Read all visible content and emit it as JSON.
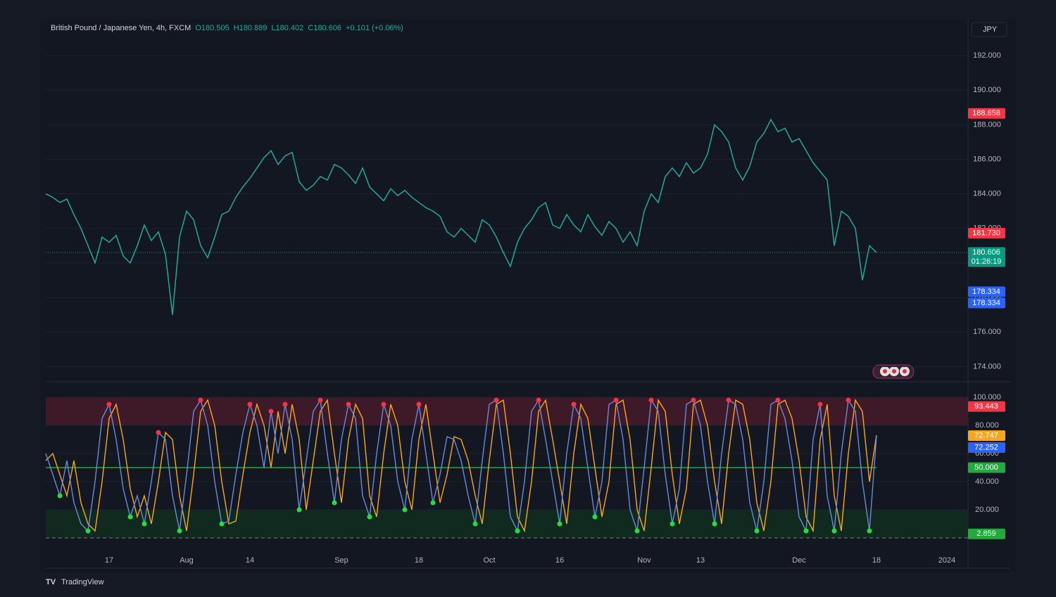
{
  "header": {
    "symbol": "British Pound / Japanese Yen, 4h, FXCM",
    "open": "O180.505",
    "high": "H180.889",
    "low": "L180.402",
    "close": "C180.606",
    "change": "+0.101 (+0.06%)",
    "currency": "JPY"
  },
  "footer": {
    "brand": "TradingView"
  },
  "chart_data": [
    {
      "type": "line",
      "color": "#26a69a",
      "values": [
        184.0,
        183.8,
        183.5,
        183.7,
        182.8,
        182.0,
        181.0,
        180.0,
        181.5,
        181.2,
        181.6,
        180.4,
        180.0,
        181.0,
        182.2,
        181.3,
        181.8,
        180.5,
        177.0,
        181.5,
        183.0,
        182.5,
        181.0,
        180.3,
        181.5,
        182.8,
        183.0,
        183.8,
        184.4,
        184.9,
        185.5,
        186.1,
        186.5,
        185.7,
        186.2,
        186.4,
        184.7,
        184.2,
        184.5,
        185.0,
        184.8,
        185.7,
        185.5,
        185.1,
        184.6,
        185.5,
        184.4,
        184.0,
        183.6,
        184.3,
        183.9,
        184.2,
        183.8,
        183.5,
        183.2,
        183.0,
        182.7,
        181.8,
        181.5,
        182.0,
        181.6,
        181.2,
        182.5,
        182.2,
        181.5,
        180.6,
        179.8,
        181.2,
        182.0,
        182.5,
        183.2,
        183.5,
        182.2,
        182.0,
        182.8,
        182.2,
        181.8,
        182.8,
        182.1,
        181.6,
        182.4,
        182.0,
        181.2,
        181.8,
        181.0,
        183.0,
        184.0,
        183.5,
        185.0,
        185.5,
        185.0,
        185.8,
        185.2,
        185.5,
        186.3,
        188.0,
        187.6,
        187.0,
        185.5,
        184.8,
        185.6,
        187.0,
        187.5,
        188.3,
        187.6,
        187.8,
        187.0,
        187.2,
        186.5,
        185.8,
        185.3,
        184.8,
        181.0,
        183.0,
        182.7,
        182.0,
        179.0,
        181.0,
        180.606,
        null,
        null,
        null,
        null,
        null,
        null,
        null,
        null,
        null,
        null
      ],
      "ylim": [
        173.2,
        194.0
      ],
      "yticks": [
        {
          "value": 174,
          "label": "174.000"
        },
        {
          "value": 176,
          "label": "176.000"
        },
        {
          "value": 178,
          "label": "178.000"
        },
        {
          "value": 180,
          "label": "180.000"
        },
        {
          "value": 182,
          "label": "182.000"
        },
        {
          "value": 184,
          "label": "184.000"
        },
        {
          "value": 186,
          "label": "186.000"
        },
        {
          "value": 188,
          "label": "188.000"
        },
        {
          "value": 190,
          "label": "190.000"
        },
        {
          "value": 192,
          "label": "192.000"
        }
      ],
      "tags": [
        {
          "value": 188.658,
          "label": "188.658",
          "color": "#f23645"
        },
        {
          "value": 181.73,
          "label": "181.730",
          "color": "#f23645"
        },
        {
          "value": 180.606,
          "label": "180.606",
          "sub": "01:26:19",
          "color": "#089981"
        },
        {
          "value": 178.334,
          "label": "178.334",
          "color": "#2962ff"
        },
        {
          "value": 178.334,
          "label": "178.334",
          "color": "#2962ff"
        }
      ]
    },
    {
      "type": "line",
      "categories": [
        null,
        null,
        null,
        null,
        null,
        null,
        null,
        null,
        null,
        "17",
        null,
        null,
        null,
        null,
        null,
        null,
        null,
        null,
        null,
        null,
        "Aug",
        null,
        null,
        null,
        null,
        null,
        null,
        null,
        null,
        "14",
        null,
        null,
        null,
        null,
        null,
        null,
        null,
        null,
        null,
        null,
        null,
        null,
        "Sep",
        null,
        null,
        null,
        null,
        null,
        null,
        null,
        null,
        null,
        null,
        "18",
        null,
        null,
        null,
        null,
        null,
        null,
        null,
        null,
        null,
        "Oct",
        null,
        null,
        null,
        null,
        null,
        null,
        null,
        null,
        null,
        "16",
        null,
        null,
        null,
        null,
        null,
        null,
        null,
        null,
        null,
        null,
        null,
        "Nov",
        null,
        null,
        null,
        null,
        null,
        null,
        null,
        "13",
        null,
        null,
        null,
        null,
        null,
        null,
        null,
        null,
        null,
        null,
        null,
        null,
        null,
        "Dec",
        null,
        null,
        null,
        null,
        null,
        null,
        null,
        null,
        null,
        null,
        "18",
        null,
        null,
        null,
        null,
        null,
        null,
        null,
        null,
        null,
        "2024"
      ],
      "series": [
        {
          "color": "#f5a623",
          "values": [
            55,
            60,
            45,
            30,
            55,
            25,
            10,
            5,
            40,
            85,
            95,
            70,
            35,
            15,
            30,
            10,
            40,
            75,
            70,
            30,
            5,
            45,
            90,
            98,
            80,
            40,
            10,
            12,
            45,
            75,
            95,
            80,
            50,
            90,
            60,
            95,
            70,
            20,
            55,
            90,
            98,
            60,
            25,
            70,
            95,
            85,
            30,
            15,
            60,
            95,
            80,
            40,
            20,
            70,
            95,
            60,
            25,
            45,
            72,
            70,
            55,
            30,
            10,
            55,
            95,
            98,
            60,
            15,
            5,
            40,
            90,
            98,
            70,
            40,
            10,
            60,
            95,
            85,
            50,
            15,
            40,
            95,
            98,
            70,
            20,
            5,
            50,
            98,
            90,
            45,
            10,
            35,
            95,
            98,
            80,
            40,
            10,
            60,
            98,
            95,
            70,
            25,
            5,
            40,
            95,
            98,
            85,
            55,
            15,
            5,
            70,
            95,
            30,
            5,
            60,
            98,
            90,
            40,
            73,
            null,
            null,
            null,
            null,
            null,
            null,
            null,
            null,
            null,
            null
          ]
        },
        {
          "color": "#6a8ad8",
          "values": [
            60,
            45,
            30,
            55,
            25,
            10,
            5,
            40,
            85,
            95,
            70,
            35,
            15,
            30,
            10,
            40,
            75,
            70,
            30,
            5,
            45,
            90,
            98,
            80,
            40,
            10,
            12,
            45,
            75,
            95,
            80,
            50,
            90,
            60,
            95,
            70,
            20,
            55,
            90,
            98,
            60,
            25,
            70,
            95,
            85,
            30,
            15,
            60,
            95,
            80,
            40,
            20,
            70,
            95,
            60,
            25,
            45,
            72,
            70,
            55,
            30,
            10,
            55,
            95,
            98,
            60,
            15,
            5,
            40,
            90,
            98,
            70,
            40,
            10,
            60,
            95,
            85,
            50,
            15,
            40,
            95,
            98,
            70,
            20,
            5,
            50,
            98,
            90,
            45,
            10,
            35,
            95,
            98,
            80,
            40,
            10,
            60,
            98,
            95,
            70,
            25,
            5,
            40,
            95,
            98,
            85,
            55,
            15,
            5,
            70,
            95,
            30,
            5,
            60,
            98,
            90,
            40,
            5,
            72,
            null,
            null,
            null,
            null,
            null,
            null,
            null,
            null,
            null,
            null
          ]
        }
      ],
      "ylim": [
        -10,
        110
      ],
      "yticks": [
        {
          "value": 20,
          "label": "20.000"
        },
        {
          "value": 40,
          "label": "40.000"
        },
        {
          "value": 60,
          "label": "60.000"
        },
        {
          "value": 80,
          "label": "80.000"
        },
        {
          "value": 100,
          "label": "100.000"
        }
      ],
      "bands": [
        {
          "from": 80,
          "to": 100,
          "color": "#4a1a2a"
        },
        {
          "from": 0,
          "to": 20,
          "color": "#12301f"
        }
      ],
      "hlines": [
        100,
        80,
        20,
        0
      ],
      "midline": 50,
      "tags": [
        {
          "value": 93.443,
          "label": "93.443",
          "color": "#f23645"
        },
        {
          "value": 72.747,
          "label": "72.747",
          "color": "#f5a623"
        },
        {
          "value": 72.252,
          "label": "72.252",
          "color": "#2962ff"
        },
        {
          "value": 50,
          "label": "50.000",
          "color": "#22ab3c"
        },
        {
          "value": 2.859,
          "label": "2.859",
          "color": "#22ab3c"
        }
      ]
    }
  ]
}
